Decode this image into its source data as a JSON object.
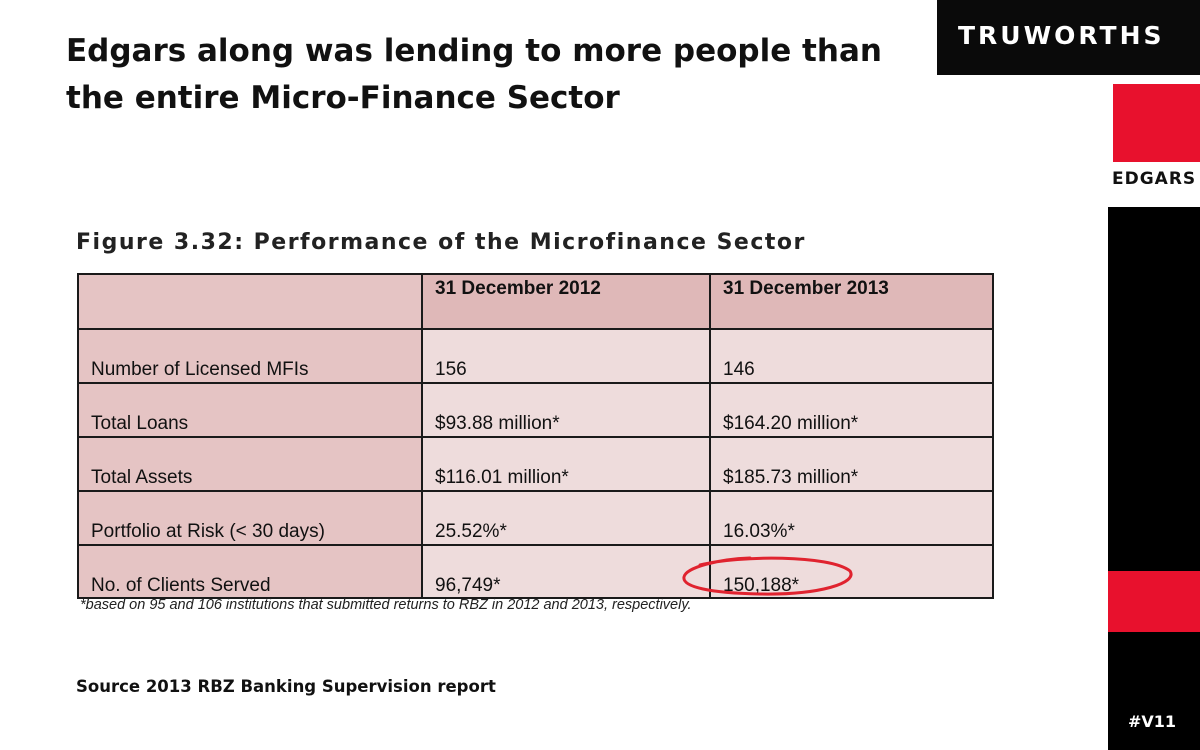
{
  "slide": {
    "title": "Edgars along was lending to more people than the entire Micro-Finance Sector",
    "source": "Source 2013 RBZ Banking  Supervision report",
    "tag": "#V11"
  },
  "brand": {
    "name": "TRUWORTHS",
    "sub_label": "EDGARS",
    "accent_color": "#e8112d",
    "dark_color": "#000000"
  },
  "figure": {
    "title": "Figure 3.32: Performance of the Microfinance Sector",
    "columns": [
      "",
      "31 December 2012",
      "31 December 2013"
    ],
    "rows": [
      {
        "label": "Number of Licensed MFIs",
        "y2012": "156",
        "y2013": "146"
      },
      {
        "label": "Total Loans",
        "y2012": "$93.88 million*",
        "y2013": "$164.20 million*"
      },
      {
        "label": "Total Assets",
        "y2012": "$116.01 million*",
        "y2013": "$185.73 million*"
      },
      {
        "label": "Portfolio at Risk (< 30 days)",
        "y2012": "25.52%*",
        "y2013": "16.03%*"
      },
      {
        "label": "No. of Clients Served",
        "y2012": "96,749*",
        "y2013": "150,188*"
      }
    ],
    "footnote": "*based on 95 and 106 institutions that submitted returns to RBZ in 2012 and 2013, respectively.",
    "highlight_color": "#e0232f"
  }
}
